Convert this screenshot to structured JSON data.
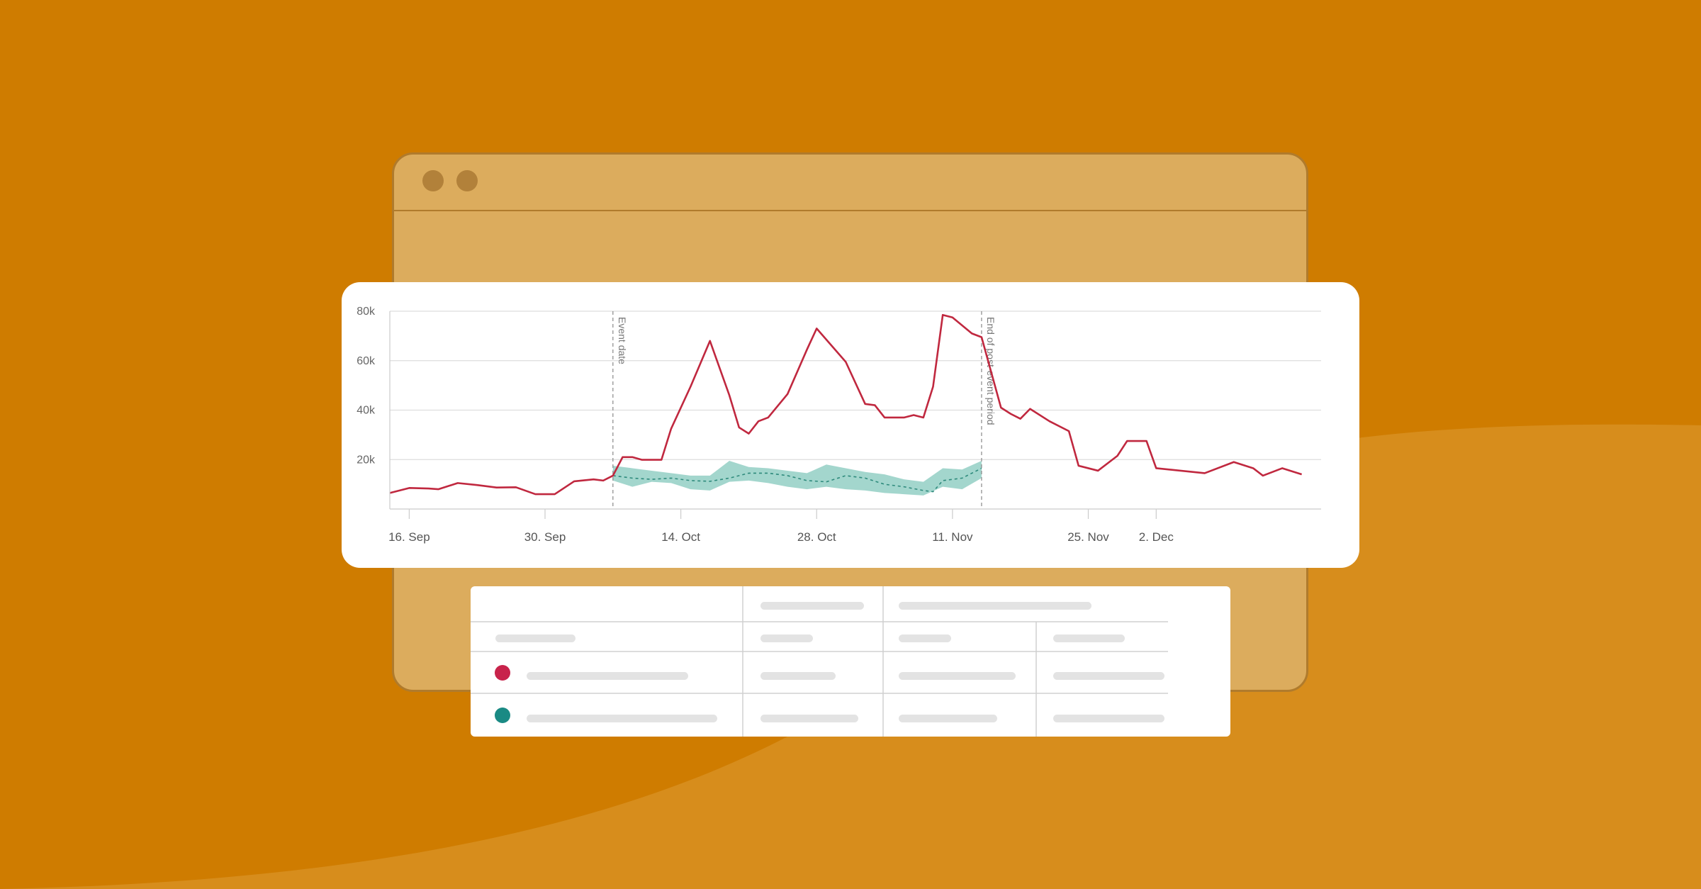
{
  "colors": {
    "background": "#cf7c00",
    "window": "#dcac5d",
    "window_border": "#b07b2c",
    "window_dot": "#b2813a",
    "actual_series": "#c0283f",
    "forecast_band": "#99d2c8",
    "forecast_line": "#2e8a7c",
    "legend_red": "#c8234b",
    "legend_teal": "#1a8a84",
    "placeholder_bar": "#e3e3e3",
    "grid": "#dddddd"
  },
  "chart_data": {
    "type": "line",
    "x_axis": "datetime",
    "x_range": [
      "2013-09-14",
      "2013-12-19"
    ],
    "y_range": [
      0,
      80000
    ],
    "y_ticks": [
      {
        "value": 20000,
        "label": "20k"
      },
      {
        "value": 40000,
        "label": "40k"
      },
      {
        "value": 60000,
        "label": "60k"
      },
      {
        "value": 80000,
        "label": "80k"
      }
    ],
    "x_ticks": [
      {
        "date": "2013-09-16",
        "label": "16. Sep"
      },
      {
        "date": "2013-09-30",
        "label": "30. Sep"
      },
      {
        "date": "2013-10-14",
        "label": "14. Oct"
      },
      {
        "date": "2013-10-28",
        "label": "28. Oct"
      },
      {
        "date": "2013-11-11",
        "label": "11. Nov"
      },
      {
        "date": "2013-11-25",
        "label": "25. Nov"
      },
      {
        "date": "2013-12-02",
        "label": "2. Dec"
      }
    ],
    "grid": true,
    "plot_lines": [
      {
        "date": "2013-10-07",
        "label": "Event date"
      },
      {
        "date": "2013-11-14",
        "label": "End of post-event period"
      }
    ],
    "series": [
      {
        "type": "line",
        "points": [
          [
            "2013-09-14",
            6500
          ],
          [
            "2013-09-16",
            8500
          ],
          [
            "2013-09-18",
            8300
          ],
          [
            "2013-09-19",
            8000
          ],
          [
            "2013-09-21",
            10500
          ],
          [
            "2013-09-23",
            9700
          ],
          [
            "2013-09-25",
            8700
          ],
          [
            "2013-09-27",
            8800
          ],
          [
            "2013-09-29",
            6000
          ],
          [
            "2013-10-01",
            6000
          ],
          [
            "2013-10-03",
            11200
          ],
          [
            "2013-10-05",
            12000
          ],
          [
            "2013-10-06",
            11500
          ],
          [
            "2013-10-07",
            13500
          ],
          [
            "2013-10-08",
            21000
          ],
          [
            "2013-10-09",
            21000
          ],
          [
            "2013-10-10",
            19900
          ],
          [
            "2013-10-12",
            19900
          ],
          [
            "2013-10-13",
            32500
          ],
          [
            "2013-10-15",
            49500
          ],
          [
            "2013-10-17",
            68000
          ],
          [
            "2013-10-19",
            46000
          ],
          [
            "2013-10-20",
            33000
          ],
          [
            "2013-10-21",
            30500
          ],
          [
            "2013-10-22",
            35500
          ],
          [
            "2013-10-23",
            37000
          ],
          [
            "2013-10-25",
            46500
          ],
          [
            "2013-10-27",
            64500
          ],
          [
            "2013-10-28",
            73000
          ],
          [
            "2013-10-31",
            59500
          ],
          [
            "2013-11-02",
            42500
          ],
          [
            "2013-11-03",
            42000
          ],
          [
            "2013-11-04",
            37000
          ],
          [
            "2013-11-06",
            37000
          ],
          [
            "2013-11-07",
            38000
          ],
          [
            "2013-11-08",
            37000
          ],
          [
            "2013-11-09",
            49500
          ],
          [
            "2013-11-10",
            78500
          ],
          [
            "2013-11-11",
            77500
          ],
          [
            "2013-11-13",
            71000
          ],
          [
            "2013-11-14",
            69500
          ],
          [
            "2013-11-16",
            41000
          ],
          [
            "2013-11-17",
            38500
          ],
          [
            "2013-11-18",
            36500
          ],
          [
            "2013-11-19",
            40500
          ],
          [
            "2013-11-21",
            35500
          ],
          [
            "2013-11-23",
            31500
          ],
          [
            "2013-11-24",
            17500
          ],
          [
            "2013-11-26",
            15500
          ],
          [
            "2013-11-28",
            21500
          ],
          [
            "2013-11-29",
            27500
          ],
          [
            "2013-12-01",
            27500
          ],
          [
            "2013-12-02",
            16500
          ],
          [
            "2013-12-07",
            14500
          ],
          [
            "2013-12-10",
            19000
          ],
          [
            "2013-12-12",
            16500
          ],
          [
            "2013-12-13",
            13500
          ],
          [
            "2013-12-15",
            16500
          ],
          [
            "2013-12-17",
            14000
          ]
        ]
      },
      {
        "type": "line",
        "dash": "dashed",
        "points": [
          [
            "2013-10-07",
            13500
          ],
          [
            "2013-10-09",
            12500
          ],
          [
            "2013-10-11",
            12000
          ],
          [
            "2013-10-13",
            12500
          ],
          [
            "2013-10-15",
            11500
          ],
          [
            "2013-10-17",
            11200
          ],
          [
            "2013-10-19",
            12500
          ],
          [
            "2013-10-21",
            14500
          ],
          [
            "2013-10-23",
            14500
          ],
          [
            "2013-10-25",
            13500
          ],
          [
            "2013-10-27",
            11500
          ],
          [
            "2013-10-29",
            11000
          ],
          [
            "2013-10-31",
            13500
          ],
          [
            "2013-11-02",
            12500
          ],
          [
            "2013-11-04",
            10000
          ],
          [
            "2013-11-06",
            9000
          ],
          [
            "2013-11-08",
            7500
          ],
          [
            "2013-11-09",
            7000
          ],
          [
            "2013-11-10",
            11500
          ],
          [
            "2013-11-12",
            12500
          ],
          [
            "2013-11-14",
            16500
          ]
        ]
      },
      {
        "type": "arearange",
        "points": [
          [
            "2013-10-07",
            11500,
            17500
          ],
          [
            "2013-10-09",
            9000,
            16500
          ],
          [
            "2013-10-11",
            11000,
            15500
          ],
          [
            "2013-10-13",
            10500,
            14500
          ],
          [
            "2013-10-15",
            8000,
            13500
          ],
          [
            "2013-10-17",
            7500,
            13500
          ],
          [
            "2013-10-19",
            11000,
            19500
          ],
          [
            "2013-10-21",
            11500,
            17000
          ],
          [
            "2013-10-23",
            10500,
            16500
          ],
          [
            "2013-10-25",
            9000,
            15500
          ],
          [
            "2013-10-27",
            8000,
            14500
          ],
          [
            "2013-10-29",
            9000,
            18000
          ],
          [
            "2013-10-31",
            8000,
            16500
          ],
          [
            "2013-11-02",
            7500,
            15000
          ],
          [
            "2013-11-04",
            6500,
            14000
          ],
          [
            "2013-11-06",
            6000,
            12000
          ],
          [
            "2013-11-08",
            5500,
            11000
          ],
          [
            "2013-11-10",
            9000,
            16500
          ],
          [
            "2013-11-12",
            8000,
            16000
          ],
          [
            "2013-11-14",
            12500,
            19500
          ]
        ]
      }
    ]
  },
  "table": {
    "rows": [
      {
        "marker_color": "#c8234b"
      },
      {
        "marker_color": "#1a8a84"
      }
    ]
  }
}
